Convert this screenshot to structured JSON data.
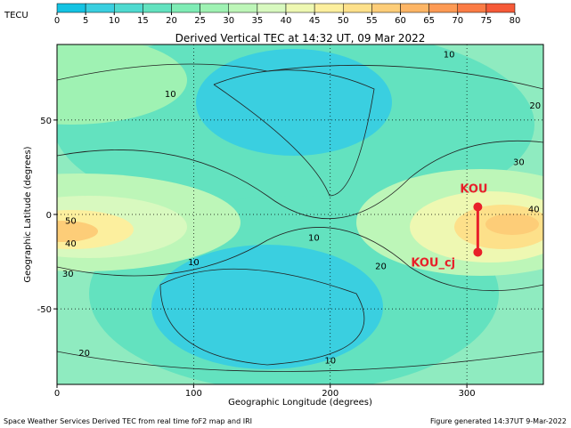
{
  "colorbar": {
    "label": "TECU",
    "ticks": [
      0,
      5,
      10,
      15,
      20,
      25,
      30,
      35,
      40,
      45,
      50,
      55,
      60,
      65,
      70,
      75,
      80
    ],
    "colors": [
      "#14c3e3",
      "#3acfe0",
      "#4fdad0",
      "#63e2bf",
      "#7fecb5",
      "#9ff2b3",
      "#bdf6b8",
      "#d8f9bf",
      "#eef8b2",
      "#fcef9e",
      "#fde08a",
      "#fdcd78",
      "#fdb565",
      "#fd9a54",
      "#fb7c45",
      "#f65a38"
    ]
  },
  "map": {
    "title": "Derived Vertical TEC at 14:32 UT, 09 Mar 2022",
    "x_label": "Geographic Longitude (degrees)",
    "y_label": "Geographic Latitude (degrees)",
    "xlim": [
      0,
      356
    ],
    "ylim": [
      -90,
      90
    ],
    "xticks": [
      0,
      100,
      200,
      300
    ],
    "yticks": [
      -50,
      0,
      50
    ],
    "contour_labels": [
      {
        "text": "10",
        "lon": 83,
        "lat": 64
      },
      {
        "text": "10",
        "lon": 188,
        "lat": -12
      },
      {
        "text": "10",
        "lon": 100,
        "lat": -25
      },
      {
        "text": "10",
        "lon": 200,
        "lat": -77
      },
      {
        "text": "10",
        "lon": 287,
        "lat": 85
      },
      {
        "text": "20",
        "lon": 20,
        "lat": -73
      },
      {
        "text": "20",
        "lon": 237,
        "lat": -27
      },
      {
        "text": "20",
        "lon": 350,
        "lat": 58
      },
      {
        "text": "30",
        "lon": 338,
        "lat": 28
      },
      {
        "text": "30",
        "lon": 8,
        "lat": -31
      },
      {
        "text": "40",
        "lon": 10,
        "lat": -15
      },
      {
        "text": "50",
        "lon": 10,
        "lat": -3
      },
      {
        "text": "40",
        "lon": 349,
        "lat": 3
      }
    ],
    "stations": [
      {
        "name": "KOU",
        "lon": 308,
        "lat": 4
      },
      {
        "name": "KOU_cj",
        "lon": 308,
        "lat": -20
      }
    ]
  },
  "footer": {
    "left": "Space Weather Services Derived TEC from real time foF2 map and IRI",
    "right": "Figure generated 14:37UT 9-Mar-2022"
  }
}
